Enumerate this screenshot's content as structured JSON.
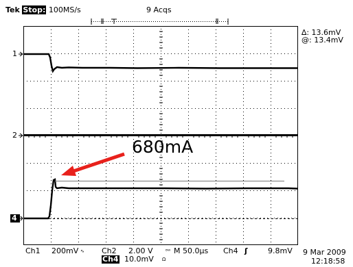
{
  "header": {
    "brand": "Tek",
    "run_state": "Stop:",
    "sample_rate": "100MS/s",
    "acquisitions": "9 Acqs"
  },
  "cursor_readout": {
    "delta": "∆: 13.6mV",
    "at": "@: 13.4mV"
  },
  "channel_markers": {
    "ch1": "1",
    "ch2": "2",
    "ch4": "4"
  },
  "annotation": {
    "label": "680mA",
    "arrow_color": "#e8211c"
  },
  "footer": {
    "ch1_label": "Ch1",
    "ch1_scale": "200mV",
    "ch2_label": "Ch2",
    "ch2_scale": "2.00 V",
    "timebase": "M 50.0µs",
    "trigger_channel": "Ch4",
    "trigger_level": "9.8mV",
    "ch4_label": "Ch4",
    "ch4_scale": "10.0mV",
    "date": "9 Mar 2009",
    "time": "12:18:58"
  },
  "colors": {
    "trace": "#000000",
    "grid": "#000000",
    "background": "#ffffff"
  }
}
